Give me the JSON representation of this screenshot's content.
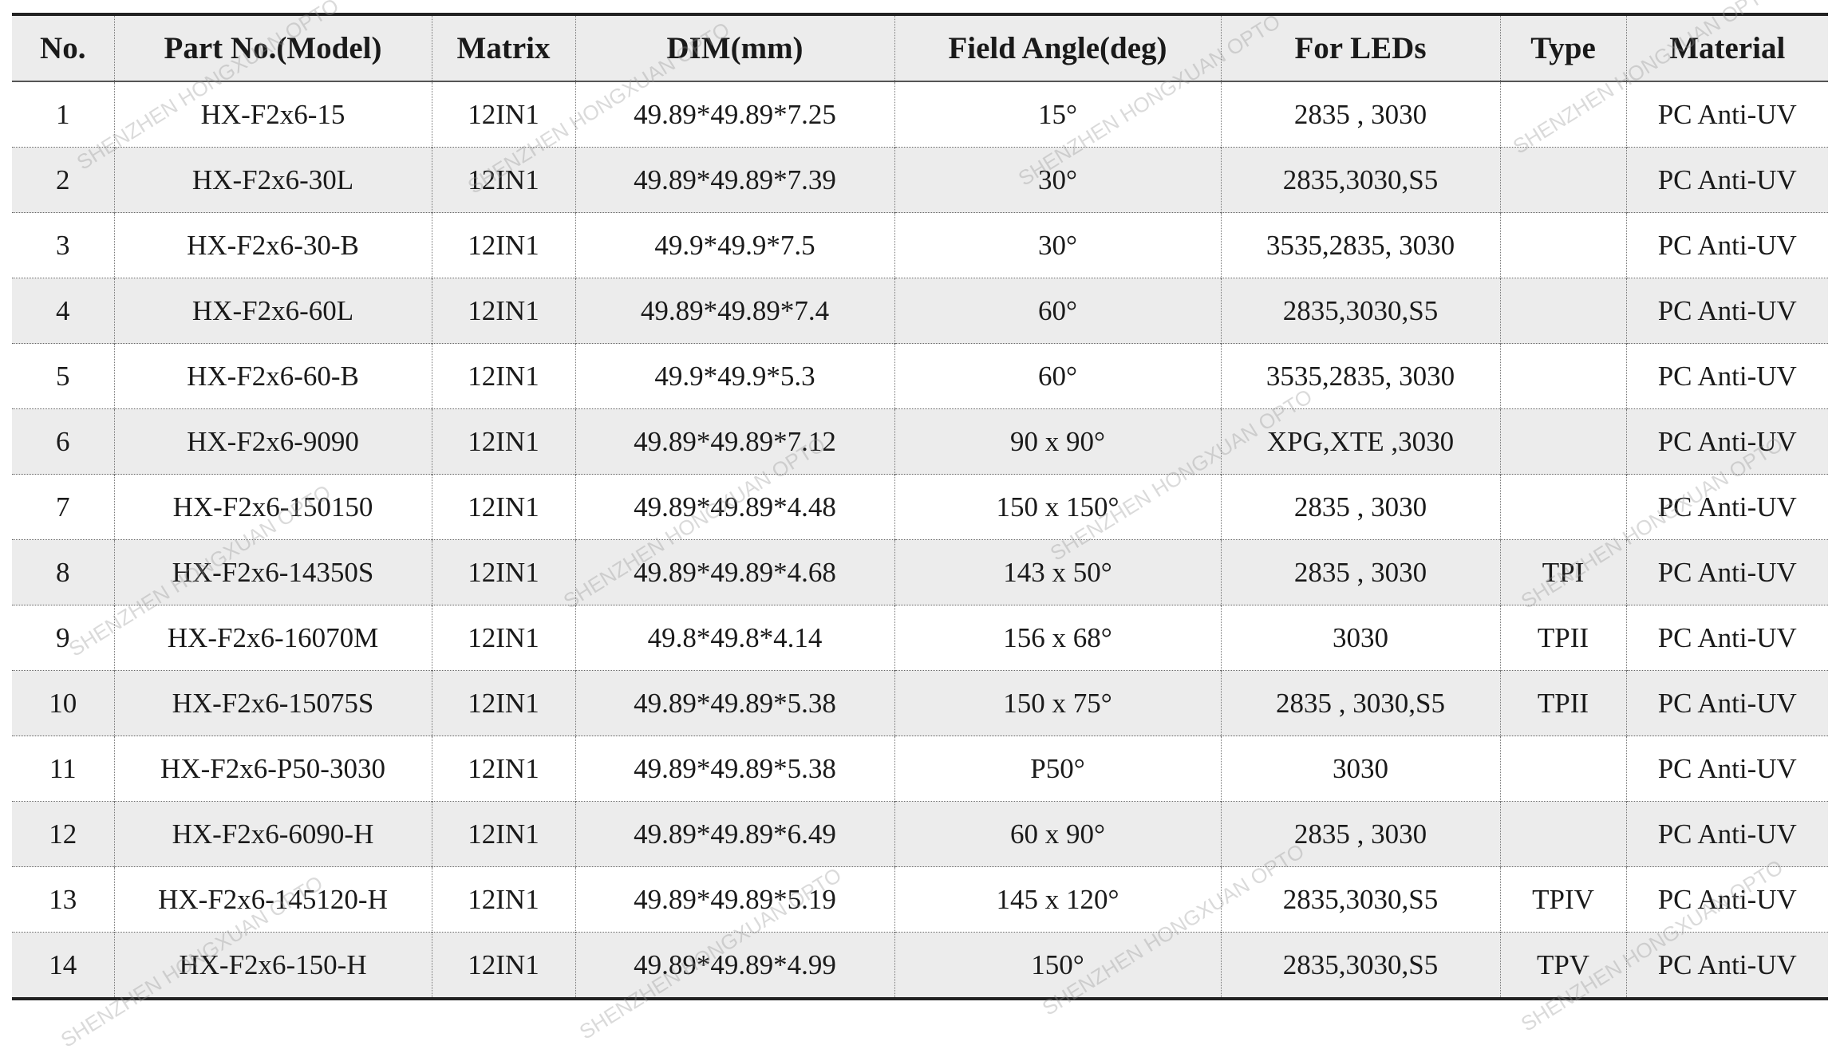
{
  "table": {
    "header": [
      "No.",
      "Part No.(Model)",
      "Matrix",
      "DIM(mm)",
      "Field Angle(deg)",
      "For LEDs",
      "Type",
      "Material"
    ],
    "rows": [
      [
        "1",
        "HX-F2x6-15",
        "12IN1",
        "49.89*49.89*7.25",
        "15°",
        "2835 , 3030",
        null,
        "PC Anti-UV"
      ],
      [
        "2",
        "HX-F2x6-30L",
        "12IN1",
        "49.89*49.89*7.39",
        "30°",
        "2835,3030,S5",
        null,
        "PC Anti-UV"
      ],
      [
        "3",
        "HX-F2x6-30-B",
        "12IN1",
        "49.9*49.9*7.5",
        "30°",
        "3535,2835, 3030",
        null,
        "PC Anti-UV"
      ],
      [
        "4",
        "HX-F2x6-60L",
        "12IN1",
        "49.89*49.89*7.4",
        "60°",
        "2835,3030,S5",
        null,
        "PC Anti-UV"
      ],
      [
        "5",
        "HX-F2x6-60-B",
        "12IN1",
        "49.9*49.9*5.3",
        "60°",
        "3535,2835, 3030",
        null,
        "PC Anti-UV"
      ],
      [
        "6",
        "HX-F2x6-9090",
        "12IN1",
        "49.89*49.89*7.12",
        "90 x 90°",
        "XPG,XTE ,3030",
        null,
        "PC Anti-UV"
      ],
      [
        "7",
        "HX-F2x6-150150",
        "12IN1",
        "49.89*49.89*4.48",
        "150 x 150°",
        "2835 , 3030",
        null,
        "PC Anti-UV"
      ],
      [
        "8",
        "HX-F2x6-14350S",
        "12IN1",
        "49.89*49.89*4.68",
        "143 x 50°",
        "2835 , 3030",
        "TPI",
        "PC Anti-UV"
      ],
      [
        "9",
        "HX-F2x6-16070M",
        "12IN1",
        "49.8*49.8*4.14",
        "156 x 68°",
        "3030",
        "TPII",
        "PC Anti-UV"
      ],
      [
        "10",
        "HX-F2x6-15075S",
        "12IN1",
        "49.89*49.89*5.38",
        "150 x 75°",
        "2835 , 3030,S5",
        "TPII",
        "PC Anti-UV"
      ],
      [
        "11",
        "HX-F2x6-P50-3030",
        "12IN1",
        "49.89*49.89*5.38",
        "P50°",
        "3030",
        null,
        "PC Anti-UV"
      ],
      [
        "12",
        "HX-F2x6-6090-H",
        "12IN1",
        "49.89*49.89*6.49",
        "60 x 90°",
        "2835 , 3030",
        null,
        "PC Anti-UV"
      ],
      [
        "13",
        "HX-F2x6-145120-H",
        "12IN1",
        "49.89*49.89*5.19",
        "145 x 120°",
        "2835,3030,S5",
        "TPIV",
        "PC Anti-UV"
      ],
      [
        "14",
        "HX-F2x6-150-H",
        "12IN1",
        "49.89*49.89*4.99",
        "150°",
        "2835,3030,S5",
        "TPV",
        "PC Anti-UV"
      ]
    ]
  },
  "watermark": "SHENZHEN HONGXUAN OPTO"
}
